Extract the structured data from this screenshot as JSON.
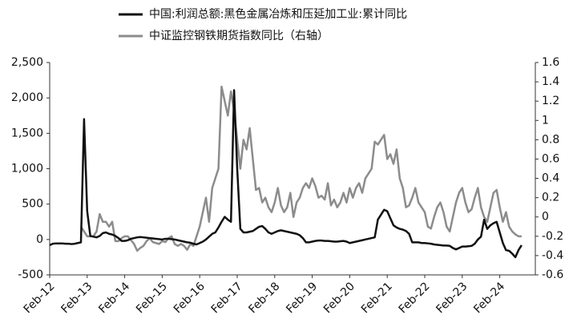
{
  "chart_data": {
    "type": "line",
    "x": [
      "2012-02",
      "2012-03",
      "2012-04",
      "2012-05",
      "2012-06",
      "2012-07",
      "2012-08",
      "2012-09",
      "2012-10",
      "2012-11",
      "2012-12",
      "2013-01",
      "2013-02",
      "2013-03",
      "2013-04",
      "2013-05",
      "2013-06",
      "2013-07",
      "2013-08",
      "2013-09",
      "2013-10",
      "2013-11",
      "2013-12",
      "2014-01",
      "2014-02",
      "2014-03",
      "2014-04",
      "2014-05",
      "2014-06",
      "2014-07",
      "2014-08",
      "2014-09",
      "2014-10",
      "2014-11",
      "2014-12",
      "2015-01",
      "2015-02",
      "2015-03",
      "2015-04",
      "2015-05",
      "2015-06",
      "2015-07",
      "2015-08",
      "2015-09",
      "2015-10",
      "2015-11",
      "2015-12",
      "2016-01",
      "2016-02",
      "2016-03",
      "2016-04",
      "2016-05",
      "2016-06",
      "2016-07",
      "2016-08",
      "2016-09",
      "2016-10",
      "2016-11",
      "2016-12",
      "2017-01",
      "2017-02",
      "2017-03",
      "2017-04",
      "2017-05",
      "2017-06",
      "2017-07",
      "2017-08",
      "2017-09",
      "2017-10",
      "2017-11",
      "2017-12",
      "2018-01",
      "2018-02",
      "2018-03",
      "2018-04",
      "2018-05",
      "2018-06",
      "2018-07",
      "2018-08",
      "2018-09",
      "2018-10",
      "2018-11",
      "2018-12",
      "2019-01",
      "2019-02",
      "2019-03",
      "2019-04",
      "2019-05",
      "2019-06",
      "2019-07",
      "2019-08",
      "2019-09",
      "2019-10",
      "2019-11",
      "2019-12",
      "2020-01",
      "2020-02",
      "2020-03",
      "2020-04",
      "2020-05",
      "2020-06",
      "2020-07",
      "2020-08",
      "2020-09",
      "2020-10",
      "2020-11",
      "2020-12",
      "2021-01",
      "2021-02",
      "2021-03",
      "2021-04",
      "2021-05",
      "2021-06",
      "2021-07",
      "2021-08",
      "2021-09",
      "2021-10",
      "2021-11",
      "2021-12",
      "2022-01",
      "2022-02",
      "2022-03",
      "2022-04",
      "2022-05",
      "2022-06",
      "2022-07",
      "2022-08",
      "2022-09",
      "2022-10",
      "2022-11",
      "2022-12",
      "2023-01",
      "2023-02",
      "2023-03",
      "2023-04",
      "2023-05",
      "2023-06",
      "2023-07",
      "2023-08",
      "2023-09",
      "2023-10",
      "2023-11",
      "2023-12",
      "2024-01",
      "2024-02",
      "2024-03",
      "2024-04",
      "2024-05",
      "2024-06",
      "2024-07",
      "2024-08",
      "2024-09"
    ],
    "series": [
      {
        "name": "中国:利润总额:黑色金属冶炼和压延加工业:累计同比",
        "color": "#111111",
        "values": [
          -80,
          -60,
          -55,
          -55,
          -55,
          -60,
          -60,
          -65,
          -60,
          -50,
          -40,
          1700,
          400,
          50,
          40,
          30,
          50,
          90,
          100,
          80,
          70,
          50,
          20,
          -20,
          -20,
          -10,
          10,
          20,
          30,
          35,
          30,
          25,
          20,
          15,
          10,
          5,
          0,
          10,
          10,
          5,
          0,
          -10,
          -20,
          -30,
          -40,
          -45,
          -60,
          -70,
          -50,
          -30,
          0,
          40,
          80,
          100,
          170,
          250,
          320,
          280,
          250,
          2110,
          1000,
          150,
          100,
          100,
          110,
          120,
          150,
          180,
          190,
          150,
          100,
          80,
          100,
          120,
          130,
          120,
          110,
          100,
          90,
          80,
          60,
          20,
          -40,
          -40,
          -30,
          -20,
          -15,
          -15,
          -20,
          -20,
          -25,
          -30,
          -30,
          -25,
          -20,
          -30,
          -50,
          -40,
          -30,
          -20,
          -10,
          0,
          10,
          20,
          30,
          280,
          350,
          420,
          400,
          300,
          200,
          170,
          150,
          140,
          120,
          80,
          -40,
          -40,
          -40,
          -50,
          -50,
          -55,
          -60,
          -70,
          -75,
          -80,
          -85,
          -85,
          -90,
          -120,
          -140,
          -120,
          -100,
          -100,
          -95,
          -90,
          -60,
          0,
          40,
          280,
          150,
          200,
          230,
          250,
          100,
          -50,
          -150,
          -160,
          -200,
          -250,
          -150,
          -80
        ]
      },
      {
        "name": "中证监控钢铁期货指数同比（右轴）",
        "color": "#8c8c8c",
        "axis": "y2",
        "values": [
          null,
          null,
          null,
          null,
          null,
          null,
          null,
          null,
          null,
          null,
          -0.1,
          -0.15,
          -0.2,
          -0.2,
          -0.2,
          -0.15,
          0.03,
          -0.05,
          -0.05,
          -0.1,
          -0.05,
          -0.25,
          -0.25,
          -0.22,
          -0.2,
          -0.2,
          -0.24,
          -0.28,
          -0.35,
          -0.32,
          -0.3,
          -0.25,
          -0.22,
          -0.26,
          -0.27,
          -0.28,
          -0.25,
          -0.26,
          -0.22,
          -0.2,
          -0.28,
          -0.3,
          -0.28,
          -0.3,
          -0.34,
          -0.28,
          -0.3,
          -0.2,
          -0.1,
          0.05,
          0.2,
          -0.05,
          0.3,
          0.4,
          0.5,
          1.35,
          1.2,
          1.05,
          1.3,
          1.1,
          0.8,
          0.5,
          0.8,
          0.7,
          0.92,
          0.6,
          0.28,
          0.3,
          0.15,
          0.2,
          0.1,
          0.05,
          0.15,
          0.3,
          0.12,
          0.05,
          0.1,
          0.25,
          0.0,
          0.15,
          0.2,
          0.3,
          0.35,
          0.3,
          0.4,
          0.32,
          0.2,
          0.22,
          0.18,
          0.35,
          0.12,
          0.18,
          0.1,
          0.15,
          0.25,
          0.15,
          0.3,
          0.2,
          0.3,
          0.35,
          0.25,
          0.4,
          0.45,
          0.5,
          0.78,
          0.75,
          0.8,
          0.85,
          0.6,
          0.65,
          0.55,
          0.7,
          0.4,
          0.3,
          0.1,
          0.12,
          0.2,
          0.3,
          0.15,
          0.1,
          0.05,
          -0.1,
          -0.12,
          0.0,
          0.1,
          0.15,
          0.05,
          -0.1,
          -0.15,
          0.0,
          0.15,
          0.25,
          0.3,
          0.15,
          0.05,
          0.08,
          0.2,
          0.3,
          0.1,
          0.0,
          -0.05,
          0.1,
          0.25,
          0.28,
          0.1,
          -0.05,
          0.05,
          -0.1,
          -0.15,
          -0.18,
          -0.2,
          -0.2
        ]
      }
    ],
    "ylim": [
      -500,
      2500
    ],
    "yticks": [
      -500,
      0,
      500,
      {
        "value": 1000,
        "label": "1,000"
      },
      {
        "value": 1500,
        "label": "1,500"
      },
      {
        "value": 2000,
        "label": "2,000"
      },
      {
        "value": 2500,
        "label": "2,500"
      }
    ],
    "y2lim": [
      -0.6,
      1.6
    ],
    "y2ticks": [
      -0.6,
      -0.4,
      -0.2,
      0,
      0.2,
      0.4,
      0.6,
      0.8,
      1,
      1.2,
      1.4,
      1.6
    ],
    "xticks": [
      {
        "value": "2012-02",
        "label": "Feb-12"
      },
      {
        "value": "2013-02",
        "label": "Feb-13"
      },
      {
        "value": "2014-02",
        "label": "Feb-14"
      },
      {
        "value": "2015-02",
        "label": "Feb-15"
      },
      {
        "value": "2016-02",
        "label": "Feb-16"
      },
      {
        "value": "2017-02",
        "label": "Feb-17"
      },
      {
        "value": "2018-02",
        "label": "Feb-18"
      },
      {
        "value": "2019-02",
        "label": "Feb-19"
      },
      {
        "value": "2020-02",
        "label": "Feb-20"
      },
      {
        "value": "2021-02",
        "label": "Feb-21"
      },
      {
        "value": "2022-02",
        "label": "Feb-22"
      },
      {
        "value": "2023-02",
        "label": "Feb-23"
      },
      {
        "value": "2024-02",
        "label": "Feb-24"
      }
    ],
    "legend": "top"
  }
}
